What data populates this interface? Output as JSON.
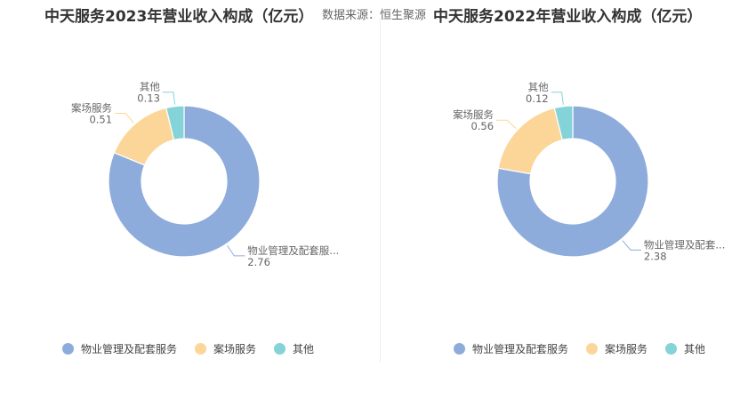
{
  "source_text": "数据来源：恒生聚源",
  "colors": {
    "series": [
      "#8eacdb",
      "#fcd699",
      "#84d3d8"
    ]
  },
  "chart_data": [
    {
      "type": "pie",
      "title": "中天服务2023年营业收入构成（亿元）",
      "categories": [
        "物业管理及配套服务",
        "案场服务",
        "其他"
      ],
      "values": [
        2.76,
        0.51,
        0.13
      ],
      "value_labels": [
        "2.76",
        "0.51",
        "0.13"
      ],
      "slice_labels": [
        "物业管理及配套服...",
        "案场服务",
        "其他"
      ],
      "legend_position": "bottom"
    },
    {
      "type": "pie",
      "title": "中天服务2022年营业收入构成（亿元）",
      "categories": [
        "物业管理及配套服务",
        "案场服务",
        "其他"
      ],
      "values": [
        2.38,
        0.56,
        0.12
      ],
      "value_labels": [
        "2.38",
        "0.56",
        "0.12"
      ],
      "slice_labels": [
        "物业管理及配套...",
        "案场服务",
        "其他"
      ],
      "legend_position": "bottom"
    }
  ]
}
